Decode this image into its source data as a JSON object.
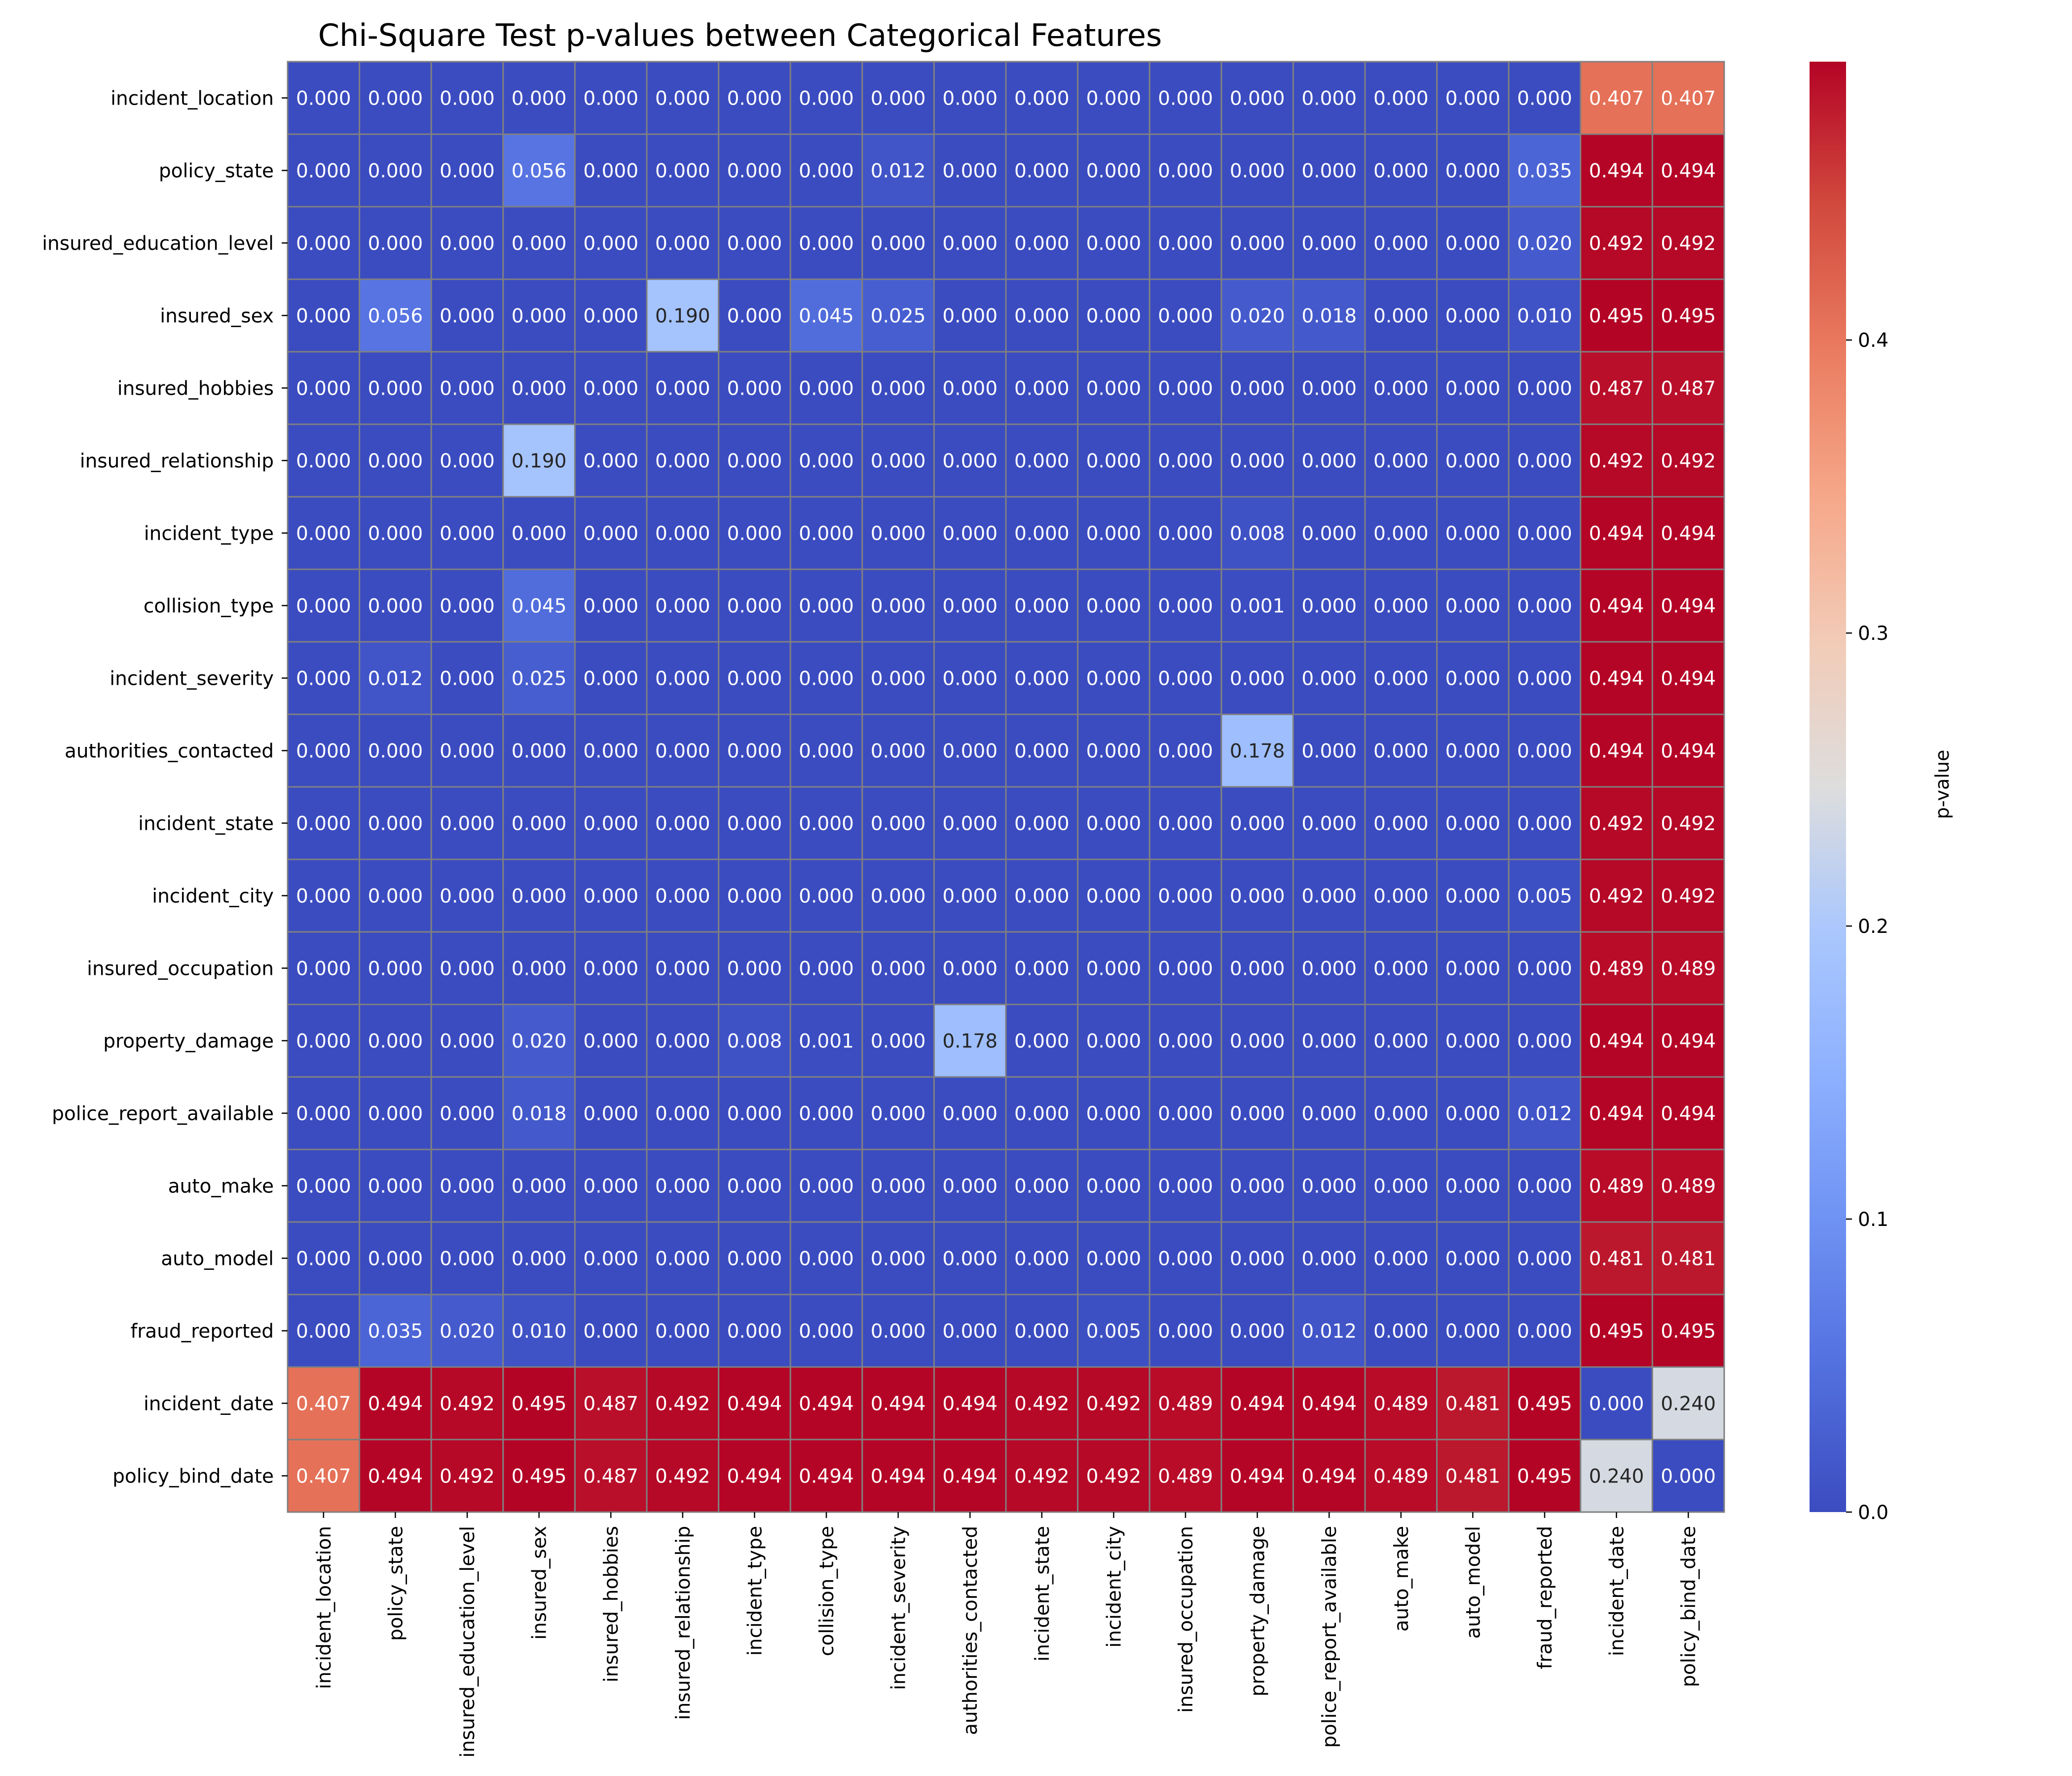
{
  "chart_data": {
    "type": "heatmap",
    "title": "Chi-Square Test p-values between Categorical Features",
    "categories": [
      "incident_location",
      "policy_state",
      "insured_education_level",
      "insured_sex",
      "insured_hobbies",
      "insured_relationship",
      "incident_type",
      "collision_type",
      "incident_severity",
      "authorities_contacted",
      "incident_state",
      "incident_city",
      "insured_occupation",
      "property_damage",
      "police_report_available",
      "auto_make",
      "auto_model",
      "fraud_reported",
      "incident_date",
      "policy_bind_date"
    ],
    "values": [
      [
        0.0,
        0.0,
        0.0,
        0.0,
        0.0,
        0.0,
        0.0,
        0.0,
        0.0,
        0.0,
        0.0,
        0.0,
        0.0,
        0.0,
        0.0,
        0.0,
        0.0,
        0.0,
        0.407,
        0.407
      ],
      [
        0.0,
        0.0,
        0.0,
        0.056,
        0.0,
        0.0,
        0.0,
        0.0,
        0.012,
        0.0,
        0.0,
        0.0,
        0.0,
        0.0,
        0.0,
        0.0,
        0.0,
        0.035,
        0.494,
        0.494
      ],
      [
        0.0,
        0.0,
        0.0,
        0.0,
        0.0,
        0.0,
        0.0,
        0.0,
        0.0,
        0.0,
        0.0,
        0.0,
        0.0,
        0.0,
        0.0,
        0.0,
        0.0,
        0.02,
        0.492,
        0.492
      ],
      [
        0.0,
        0.056,
        0.0,
        0.0,
        0.0,
        0.19,
        0.0,
        0.045,
        0.025,
        0.0,
        0.0,
        0.0,
        0.0,
        0.02,
        0.018,
        0.0,
        0.0,
        0.01,
        0.495,
        0.495
      ],
      [
        0.0,
        0.0,
        0.0,
        0.0,
        0.0,
        0.0,
        0.0,
        0.0,
        0.0,
        0.0,
        0.0,
        0.0,
        0.0,
        0.0,
        0.0,
        0.0,
        0.0,
        0.0,
        0.487,
        0.487
      ],
      [
        0.0,
        0.0,
        0.0,
        0.19,
        0.0,
        0.0,
        0.0,
        0.0,
        0.0,
        0.0,
        0.0,
        0.0,
        0.0,
        0.0,
        0.0,
        0.0,
        0.0,
        0.0,
        0.492,
        0.492
      ],
      [
        0.0,
        0.0,
        0.0,
        0.0,
        0.0,
        0.0,
        0.0,
        0.0,
        0.0,
        0.0,
        0.0,
        0.0,
        0.0,
        0.008,
        0.0,
        0.0,
        0.0,
        0.0,
        0.494,
        0.494
      ],
      [
        0.0,
        0.0,
        0.0,
        0.045,
        0.0,
        0.0,
        0.0,
        0.0,
        0.0,
        0.0,
        0.0,
        0.0,
        0.0,
        0.001,
        0.0,
        0.0,
        0.0,
        0.0,
        0.494,
        0.494
      ],
      [
        0.0,
        0.012,
        0.0,
        0.025,
        0.0,
        0.0,
        0.0,
        0.0,
        0.0,
        0.0,
        0.0,
        0.0,
        0.0,
        0.0,
        0.0,
        0.0,
        0.0,
        0.0,
        0.494,
        0.494
      ],
      [
        0.0,
        0.0,
        0.0,
        0.0,
        0.0,
        0.0,
        0.0,
        0.0,
        0.0,
        0.0,
        0.0,
        0.0,
        0.0,
        0.178,
        0.0,
        0.0,
        0.0,
        0.0,
        0.494,
        0.494
      ],
      [
        0.0,
        0.0,
        0.0,
        0.0,
        0.0,
        0.0,
        0.0,
        0.0,
        0.0,
        0.0,
        0.0,
        0.0,
        0.0,
        0.0,
        0.0,
        0.0,
        0.0,
        0.0,
        0.492,
        0.492
      ],
      [
        0.0,
        0.0,
        0.0,
        0.0,
        0.0,
        0.0,
        0.0,
        0.0,
        0.0,
        0.0,
        0.0,
        0.0,
        0.0,
        0.0,
        0.0,
        0.0,
        0.0,
        0.005,
        0.492,
        0.492
      ],
      [
        0.0,
        0.0,
        0.0,
        0.0,
        0.0,
        0.0,
        0.0,
        0.0,
        0.0,
        0.0,
        0.0,
        0.0,
        0.0,
        0.0,
        0.0,
        0.0,
        0.0,
        0.0,
        0.489,
        0.489
      ],
      [
        0.0,
        0.0,
        0.0,
        0.02,
        0.0,
        0.0,
        0.008,
        0.001,
        0.0,
        0.178,
        0.0,
        0.0,
        0.0,
        0.0,
        0.0,
        0.0,
        0.0,
        0.0,
        0.494,
        0.494
      ],
      [
        0.0,
        0.0,
        0.0,
        0.018,
        0.0,
        0.0,
        0.0,
        0.0,
        0.0,
        0.0,
        0.0,
        0.0,
        0.0,
        0.0,
        0.0,
        0.0,
        0.0,
        0.012,
        0.494,
        0.494
      ],
      [
        0.0,
        0.0,
        0.0,
        0.0,
        0.0,
        0.0,
        0.0,
        0.0,
        0.0,
        0.0,
        0.0,
        0.0,
        0.0,
        0.0,
        0.0,
        0.0,
        0.0,
        0.0,
        0.489,
        0.489
      ],
      [
        0.0,
        0.0,
        0.0,
        0.0,
        0.0,
        0.0,
        0.0,
        0.0,
        0.0,
        0.0,
        0.0,
        0.0,
        0.0,
        0.0,
        0.0,
        0.0,
        0.0,
        0.0,
        0.481,
        0.481
      ],
      [
        0.0,
        0.035,
        0.02,
        0.01,
        0.0,
        0.0,
        0.0,
        0.0,
        0.0,
        0.0,
        0.0,
        0.005,
        0.0,
        0.0,
        0.012,
        0.0,
        0.0,
        0.0,
        0.495,
        0.495
      ],
      [
        0.407,
        0.494,
        0.492,
        0.495,
        0.487,
        0.492,
        0.494,
        0.494,
        0.494,
        0.494,
        0.492,
        0.492,
        0.489,
        0.494,
        0.494,
        0.489,
        0.481,
        0.495,
        0.0,
        0.24
      ],
      [
        0.407,
        0.494,
        0.492,
        0.495,
        0.487,
        0.492,
        0.494,
        0.494,
        0.494,
        0.494,
        0.492,
        0.492,
        0.489,
        0.494,
        0.494,
        0.489,
        0.481,
        0.495,
        0.24,
        0.0
      ]
    ],
    "colorbar": {
      "label": "p-value",
      "range": [
        0,
        0.495
      ],
      "ticks": [
        "0.0",
        "0.1",
        "0.2",
        "0.3",
        "0.4"
      ],
      "colormap": "coolwarm"
    },
    "cell_border_color": "#808080"
  }
}
